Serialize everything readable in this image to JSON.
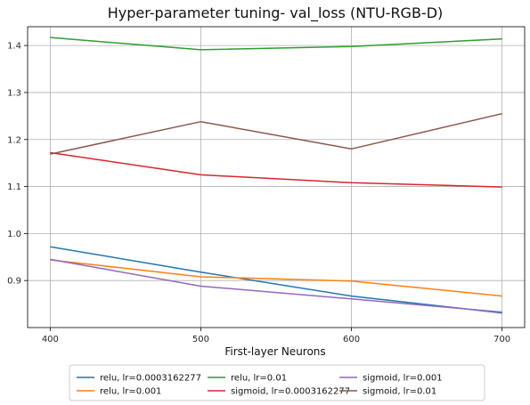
{
  "chart_data": {
    "type": "line",
    "title": "Hyper-parameter tuning- val_loss (NTU-RGB-D)",
    "xlabel": "First-layer Neurons",
    "ylabel": "",
    "x": [
      400,
      500,
      600,
      700
    ],
    "x_ticks": [
      "400",
      "500",
      "600",
      "700"
    ],
    "y_ticks": [
      "0.9",
      "1.0",
      "1.1",
      "1.2",
      "1.3",
      "1.4"
    ],
    "xlim": [
      385,
      715
    ],
    "ylim": [
      0.8,
      1.44
    ],
    "grid": true,
    "legend_position": "bottom-center",
    "series": [
      {
        "name": "relu, lr=0.0003162277",
        "color": "#1f77b4",
        "values": [
          0.972,
          0.918,
          0.867,
          0.831
        ]
      },
      {
        "name": "relu, lr=0.001",
        "color": "#ff7f0e",
        "values": [
          0.944,
          0.908,
          0.899,
          0.867
        ]
      },
      {
        "name": "relu, lr=0.01",
        "color": "#2ca02c",
        "values": [
          1.417,
          1.391,
          1.398,
          1.414
        ]
      },
      {
        "name": "sigmoid, lr=0.0003162277",
        "color": "#d62728",
        "values": [
          1.172,
          1.125,
          1.108,
          1.099
        ]
      },
      {
        "name": "sigmoid, lr=0.001",
        "color": "#9467bd",
        "values": [
          0.945,
          0.888,
          0.861,
          0.833
        ]
      },
      {
        "name": "sigmoid, lr=0.01",
        "color": "#8c564b",
        "values": [
          1.169,
          1.238,
          1.18,
          1.255
        ]
      }
    ]
  }
}
